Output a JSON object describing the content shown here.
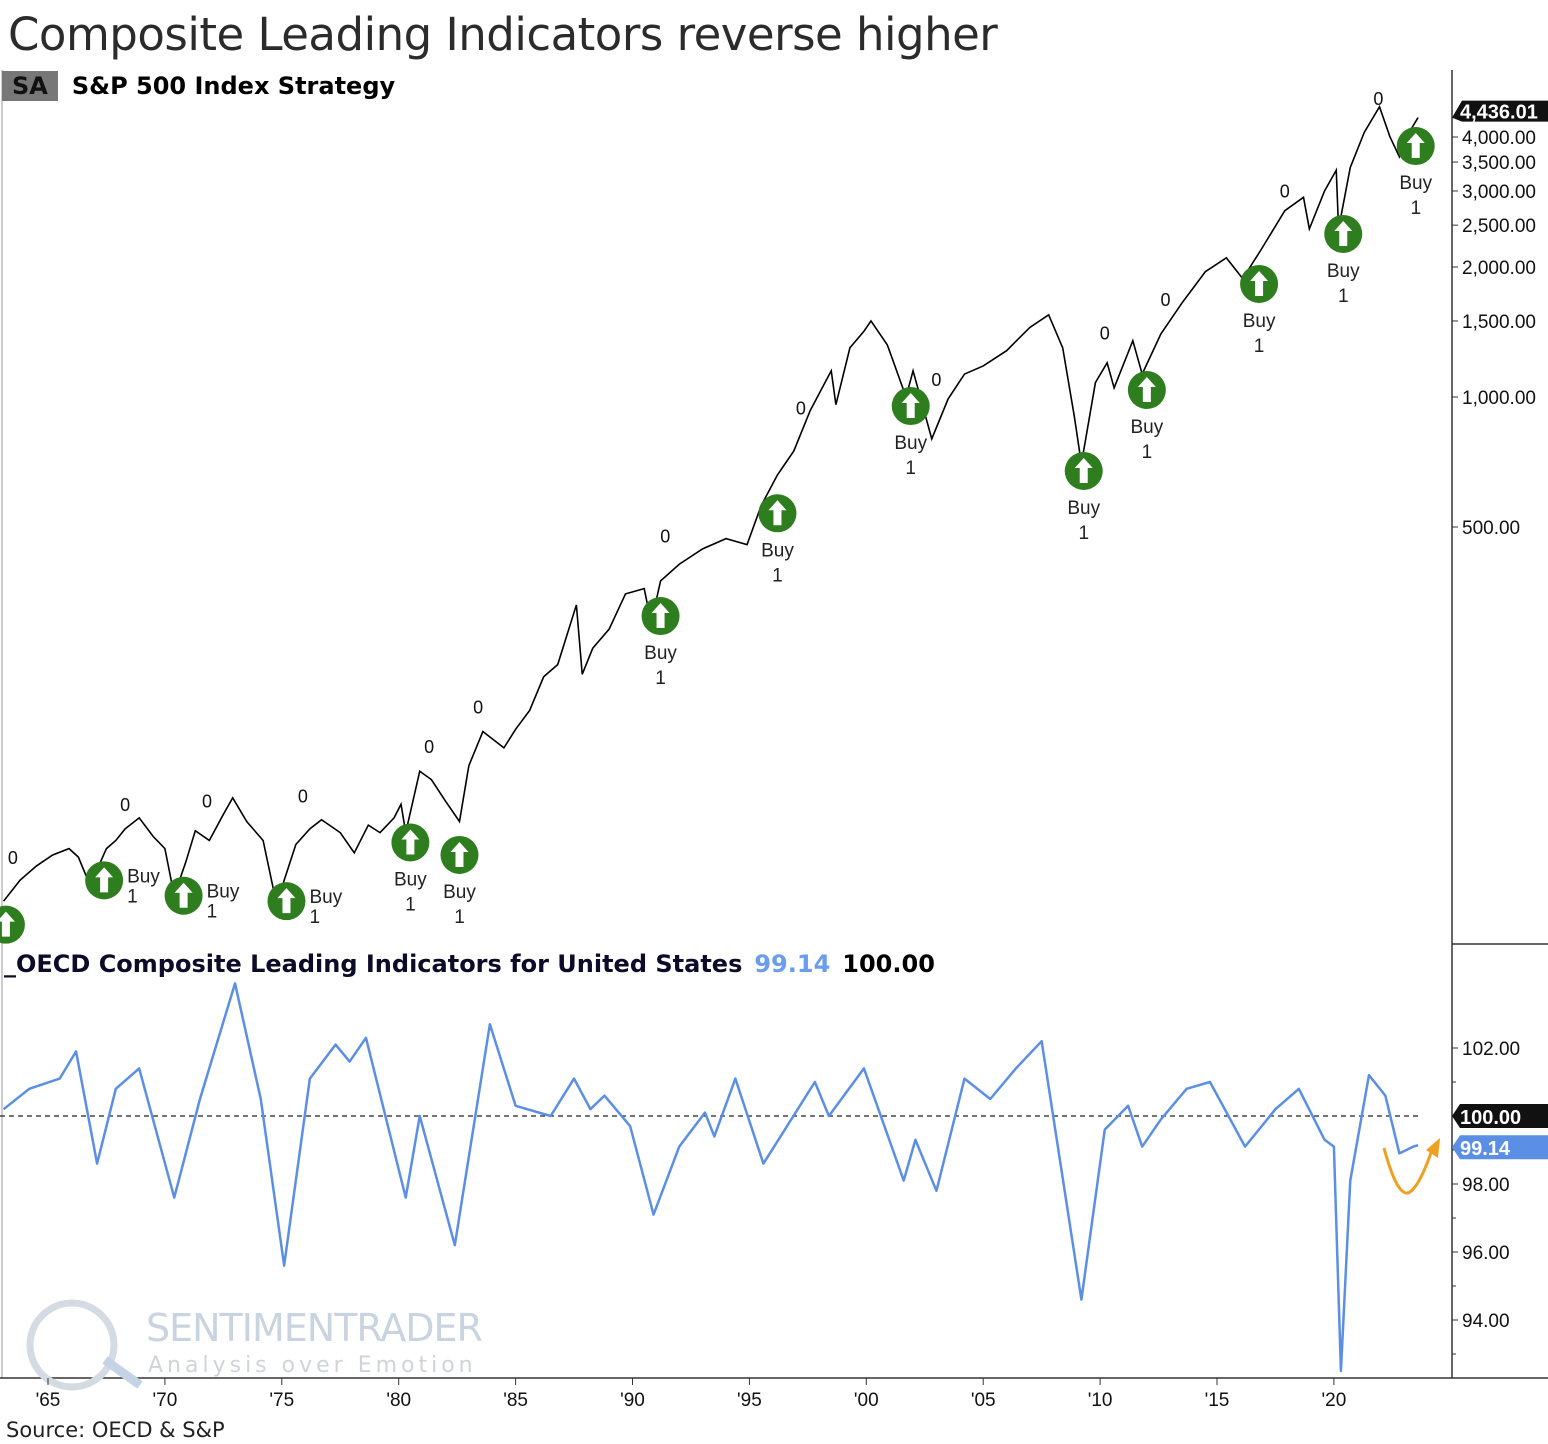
{
  "title": "Composite Leading Indicators reverse higher",
  "source": "Source: OECD & S&P",
  "watermark": {
    "brand": "SENTIMENTRADER",
    "tagline": "Analysis over Emotion"
  },
  "colors": {
    "price": "#000000",
    "cli": "#5b8fe6",
    "buy": "#2e7d1e",
    "annotation": "#f0a020"
  },
  "chart_data": [
    {
      "type": "line",
      "title": "S&P 500 Index Strategy",
      "legend_tag": "SA",
      "scale": "log",
      "last_value_label": "4,436.01",
      "yticks": [
        {
          "v": 4000,
          "label": "4,000.00"
        },
        {
          "v": 3500,
          "label": "3,500.00"
        },
        {
          "v": 3000,
          "label": "3,000.00"
        },
        {
          "v": 2500,
          "label": "2,500.00"
        },
        {
          "v": 2000,
          "label": "2,000.00"
        },
        {
          "v": 1500,
          "label": "1,500.00"
        },
        {
          "v": 1000,
          "label": "1,000.00"
        },
        {
          "v": 500,
          "label": "500.00"
        }
      ],
      "series": [
        {
          "name": "S&P 500",
          "points": [
            [
              1963.1,
              68
            ],
            [
              1963.8,
              76
            ],
            [
              1964.5,
              82
            ],
            [
              1965.2,
              87
            ],
            [
              1965.9,
              90
            ],
            [
              1966.3,
              86
            ],
            [
              1966.8,
              74
            ],
            [
              1967.5,
              90
            ],
            [
              1967.9,
              94
            ],
            [
              1968.3,
              100
            ],
            [
              1968.9,
              106
            ],
            [
              1969.5,
              96
            ],
            [
              1970.0,
              90
            ],
            [
              1970.4,
              70
            ],
            [
              1970.9,
              84
            ],
            [
              1971.3,
              99
            ],
            [
              1971.9,
              94
            ],
            [
              1972.5,
              108
            ],
            [
              1972.9,
              118
            ],
            [
              1973.5,
              104
            ],
            [
              1974.2,
              94
            ],
            [
              1974.8,
              66
            ],
            [
              1975.1,
              76
            ],
            [
              1975.6,
              92
            ],
            [
              1976.2,
              100
            ],
            [
              1976.7,
              105
            ],
            [
              1977.5,
              98
            ],
            [
              1978.1,
              88
            ],
            [
              1978.7,
              102
            ],
            [
              1979.2,
              98
            ],
            [
              1979.8,
              106
            ],
            [
              1980.1,
              114
            ],
            [
              1980.3,
              98
            ],
            [
              1980.9,
              136
            ],
            [
              1981.4,
              130
            ],
            [
              1982.0,
              116
            ],
            [
              1982.6,
              104
            ],
            [
              1983.0,
              140
            ],
            [
              1983.6,
              168
            ],
            [
              1984.5,
              154
            ],
            [
              1985.0,
              170
            ],
            [
              1985.6,
              188
            ],
            [
              1986.2,
              225
            ],
            [
              1986.8,
              240
            ],
            [
              1987.6,
              330
            ],
            [
              1987.85,
              228
            ],
            [
              1988.3,
              262
            ],
            [
              1989.0,
              290
            ],
            [
              1989.7,
              350
            ],
            [
              1990.5,
              360
            ],
            [
              1990.8,
              300
            ],
            [
              1991.2,
              375
            ],
            [
              1992.0,
              410
            ],
            [
              1993.0,
              445
            ],
            [
              1994.0,
              470
            ],
            [
              1994.9,
              455
            ],
            [
              1995.5,
              560
            ],
            [
              1996.2,
              660
            ],
            [
              1996.9,
              750
            ],
            [
              1997.6,
              930
            ],
            [
              1998.5,
              1150
            ],
            [
              1998.7,
              960
            ],
            [
              1999.3,
              1300
            ],
            [
              1999.9,
              1420
            ],
            [
              2000.2,
              1500
            ],
            [
              2000.9,
              1320
            ],
            [
              2001.7,
              1000
            ],
            [
              2002.0,
              1150
            ],
            [
              2002.8,
              800
            ],
            [
              2003.5,
              990
            ],
            [
              2004.2,
              1130
            ],
            [
              2005.0,
              1180
            ],
            [
              2006.0,
              1280
            ],
            [
              2007.0,
              1450
            ],
            [
              2007.8,
              1550
            ],
            [
              2008.4,
              1300
            ],
            [
              2008.9,
              900
            ],
            [
              2009.2,
              700
            ],
            [
              2009.8,
              1080
            ],
            [
              2010.3,
              1200
            ],
            [
              2010.6,
              1050
            ],
            [
              2011.4,
              1350
            ],
            [
              2011.8,
              1130
            ],
            [
              2012.6,
              1400
            ],
            [
              2013.5,
              1650
            ],
            [
              2014.5,
              1950
            ],
            [
              2015.4,
              2100
            ],
            [
              2016.1,
              1880
            ],
            [
              2016.9,
              2200
            ],
            [
              2017.9,
              2700
            ],
            [
              2018.7,
              2900
            ],
            [
              2018.95,
              2450
            ],
            [
              2019.6,
              3000
            ],
            [
              2020.1,
              3350
            ],
            [
              2020.2,
              2450
            ],
            [
              2020.7,
              3400
            ],
            [
              2021.3,
              4100
            ],
            [
              2021.95,
              4700
            ],
            [
              2022.4,
              4000
            ],
            [
              2022.8,
              3600
            ],
            [
              2023.1,
              4000
            ],
            [
              2023.6,
              4436
            ]
          ]
        }
      ],
      "signals": [
        {
          "x": 1963.2,
          "price": 60,
          "label": "",
          "sub": ""
        },
        {
          "x": 1967.4,
          "price": 76,
          "label": "Buy",
          "sub": "1"
        },
        {
          "x": 1970.8,
          "price": 70,
          "label": "Buy",
          "sub": "1"
        },
        {
          "x": 1975.2,
          "price": 68,
          "label": "Buy",
          "sub": "1"
        },
        {
          "x": 1980.5,
          "price": 93,
          "label": "Buy",
          "sub": "1"
        },
        {
          "x": 1982.6,
          "price": 87,
          "label": "Buy",
          "sub": "1"
        },
        {
          "x": 1991.2,
          "price": 311,
          "label": "Buy",
          "sub": "1"
        },
        {
          "x": 1996.2,
          "price": 538,
          "label": "Buy",
          "sub": "1"
        },
        {
          "x": 2001.9,
          "price": 953,
          "label": "Buy",
          "sub": "1"
        },
        {
          "x": 2009.3,
          "price": 674,
          "label": "Buy",
          "sub": "1"
        },
        {
          "x": 2012.0,
          "price": 1038,
          "label": "Buy",
          "sub": "1"
        },
        {
          "x": 2016.8,
          "price": 1827,
          "label": "Buy",
          "sub": "1"
        },
        {
          "x": 2020.4,
          "price": 2385,
          "label": "Buy",
          "sub": "1"
        },
        {
          "x": 2023.5,
          "price": 3812,
          "label": "Buy",
          "sub": "1"
        }
      ],
      "zero_marks": [
        {
          "x": 1963.5,
          "price": 83,
          "label": "0"
        },
        {
          "x": 1968.3,
          "price": 110,
          "label": "0"
        },
        {
          "x": 1971.8,
          "price": 112,
          "label": "0"
        },
        {
          "x": 1975.9,
          "price": 115,
          "label": "0"
        },
        {
          "x": 1981.3,
          "price": 150,
          "label": "0"
        },
        {
          "x": 1983.4,
          "price": 185,
          "label": "0"
        },
        {
          "x": 1991.4,
          "price": 460,
          "label": "0"
        },
        {
          "x": 1997.2,
          "price": 910,
          "label": "0"
        },
        {
          "x": 2003.0,
          "price": 1060,
          "label": "0"
        },
        {
          "x": 2010.2,
          "price": 1360,
          "label": "0"
        },
        {
          "x": 2012.8,
          "price": 1625,
          "label": "0"
        },
        {
          "x": 2017.9,
          "price": 2900,
          "label": "0"
        },
        {
          "x": 2021.9,
          "price": 4750,
          "label": "0"
        }
      ]
    },
    {
      "type": "line",
      "title": "_OECD Composite Leading Indicators for United States",
      "current_value": "99.14",
      "reference_value": "100.00",
      "ylim": [
        92.3,
        104.3
      ],
      "yticks": [
        {
          "v": 102,
          "label": "102.00"
        },
        {
          "v": 98,
          "label": "98.00"
        },
        {
          "v": 96,
          "label": "96.00"
        },
        {
          "v": 94,
          "label": "94.00"
        }
      ],
      "reference_line": 100,
      "series": [
        {
          "name": "CLI",
          "points": [
            [
              1963.1,
              100.2
            ],
            [
              1964.2,
              100.8
            ],
            [
              1965.5,
              101.1
            ],
            [
              1966.2,
              101.9
            ],
            [
              1967.1,
              98.6
            ],
            [
              1967.9,
              100.8
            ],
            [
              1968.9,
              101.4
            ],
            [
              1970.4,
              97.6
            ],
            [
              1971.5,
              100.5
            ],
            [
              1973.0,
              103.9
            ],
            [
              1974.1,
              100.5
            ],
            [
              1975.1,
              95.6
            ],
            [
              1976.2,
              101.1
            ],
            [
              1977.3,
              102.1
            ],
            [
              1977.9,
              101.6
            ],
            [
              1978.6,
              102.3
            ],
            [
              1980.3,
              97.6
            ],
            [
              1980.9,
              100.0
            ],
            [
              1982.4,
              96.2
            ],
            [
              1983.9,
              102.7
            ],
            [
              1985.0,
              100.3
            ],
            [
              1986.5,
              100.0
            ],
            [
              1987.5,
              101.1
            ],
            [
              1988.2,
              100.2
            ],
            [
              1988.8,
              100.6
            ],
            [
              1989.9,
              99.7
            ],
            [
              1990.9,
              97.1
            ],
            [
              1992.0,
              99.1
            ],
            [
              1993.1,
              100.1
            ],
            [
              1993.5,
              99.4
            ],
            [
              1994.4,
              101.1
            ],
            [
              1995.6,
              98.6
            ],
            [
              1997.8,
              101.0
            ],
            [
              1998.4,
              100.0
            ],
            [
              1999.9,
              101.4
            ],
            [
              2001.6,
              98.1
            ],
            [
              2002.1,
              99.3
            ],
            [
              2003.0,
              97.8
            ],
            [
              2004.2,
              101.1
            ],
            [
              2005.3,
              100.5
            ],
            [
              2006.4,
              101.4
            ],
            [
              2007.5,
              102.2
            ],
            [
              2009.2,
              94.6
            ],
            [
              2010.2,
              99.6
            ],
            [
              2011.2,
              100.3
            ],
            [
              2011.8,
              99.1
            ],
            [
              2012.6,
              99.9
            ],
            [
              2013.7,
              100.8
            ],
            [
              2014.7,
              101.0
            ],
            [
              2016.2,
              99.1
            ],
            [
              2017.5,
              100.2
            ],
            [
              2018.5,
              100.8
            ],
            [
              2019.6,
              99.3
            ],
            [
              2020.0,
              99.1
            ],
            [
              2020.3,
              92.5
            ],
            [
              2020.7,
              98.1
            ],
            [
              2021.5,
              101.2
            ],
            [
              2022.2,
              100.6
            ],
            [
              2022.8,
              98.9
            ],
            [
              2023.4,
              99.1
            ],
            [
              2023.6,
              99.14
            ]
          ]
        }
      ]
    }
  ],
  "xaxis": {
    "ticks": [
      {
        "v": 1965,
        "label": "'65"
      },
      {
        "v": 1970,
        "label": "'70"
      },
      {
        "v": 1975,
        "label": "'75"
      },
      {
        "v": 1980,
        "label": "'80"
      },
      {
        "v": 1985,
        "label": "'85"
      },
      {
        "v": 1990,
        "label": "'90"
      },
      {
        "v": 1995,
        "label": "'95"
      },
      {
        "v": 2000,
        "label": "'00"
      },
      {
        "v": 2005,
        "label": "'05"
      },
      {
        "v": 2010,
        "label": "'10"
      },
      {
        "v": 2015,
        "label": "'15"
      },
      {
        "v": 2020,
        "label": "'20"
      }
    ]
  }
}
